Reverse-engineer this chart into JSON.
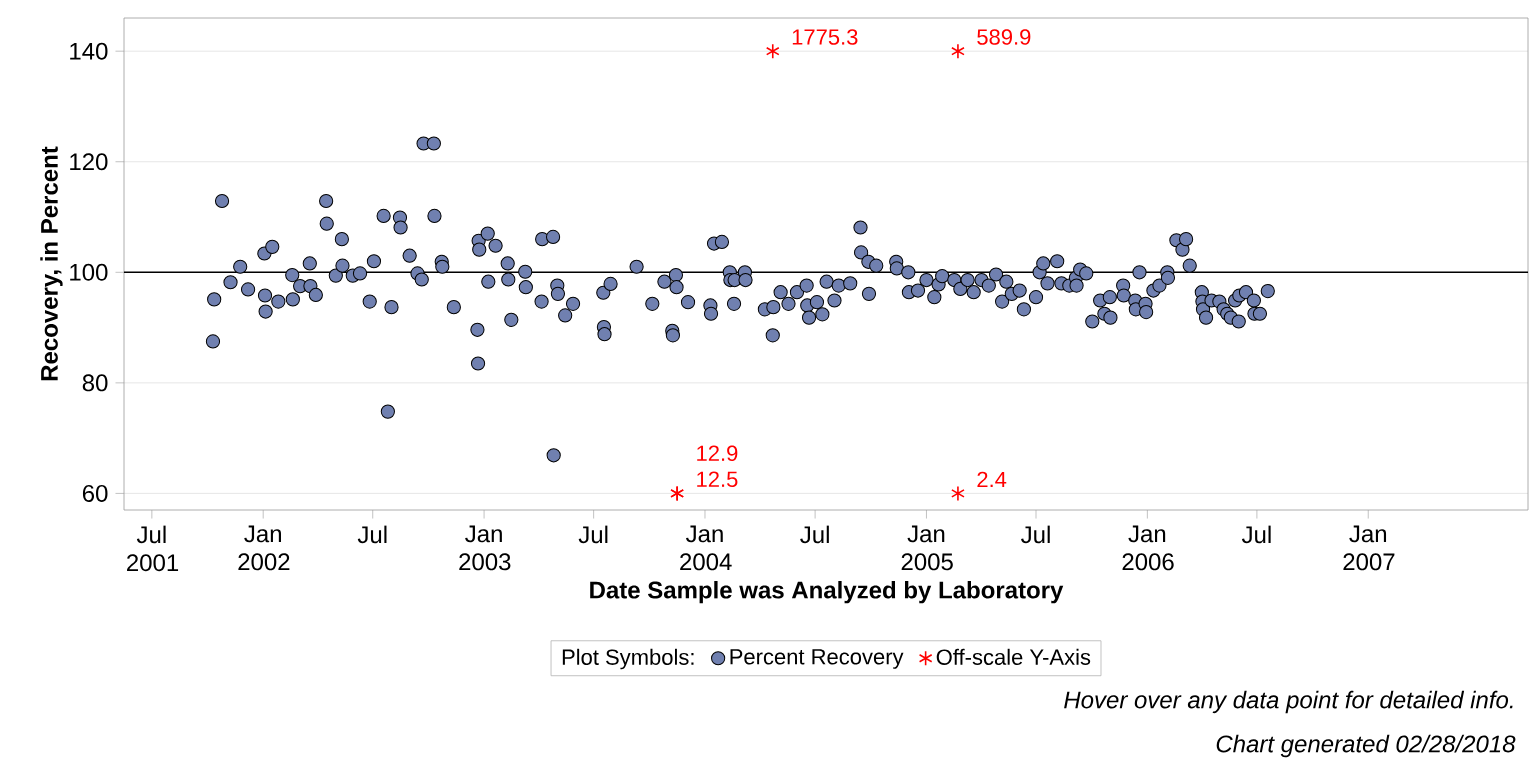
{
  "chart_data": {
    "type": "scatter",
    "xlabel": "Date Sample was Analyzed by Laboratory",
    "ylabel": "Recovery, in Percent",
    "legend_title": "Plot Symbols:",
    "legend": "bottom",
    "grid": "y",
    "xlim": [
      "2001-05-16",
      "2007-09-22"
    ],
    "xticks": [
      {
        "value": "2001-07-01",
        "label": "Jul 2001"
      },
      {
        "value": "2002-01-01",
        "label": "Jan 2002"
      },
      {
        "value": "2002-07-01",
        "label": "Jul"
      },
      {
        "value": "2003-01-01",
        "label": "Jan 2003"
      },
      {
        "value": "2003-07-01",
        "label": "Jul"
      },
      {
        "value": "2004-01-01",
        "label": "Jan 2004"
      },
      {
        "value": "2004-07-01",
        "label": "Jul"
      },
      {
        "value": "2005-01-01",
        "label": "Jan 2005"
      },
      {
        "value": "2005-07-01",
        "label": "Jul"
      },
      {
        "value": "2006-01-01",
        "label": "Jan 2006"
      },
      {
        "value": "2006-07-01",
        "label": "Jul"
      },
      {
        "value": "2007-01-01",
        "label": "Jan 2007"
      }
    ],
    "ylim": [
      57,
      146
    ],
    "yticks": [
      60,
      80,
      100,
      120,
      140
    ],
    "ref_lines": [
      {
        "axis": "y",
        "value": 100,
        "color": "#000000"
      }
    ],
    "annotations": [
      "Hover over any data point for detailed info.",
      "Chart generated 02/28/2018",
      {
        "text": "1775.3",
        "x": "2004-04-22",
        "y": 140
      },
      {
        "text": "589.9",
        "x": "2005-02-22",
        "y": 140
      },
      {
        "text": "12.5",
        "x": "2003-11-16",
        "y": 60
      },
      {
        "text": "12.9",
        "x": "2003-11-16",
        "y": 60
      },
      {
        "text": "2.4",
        "x": "2005-02-22",
        "y": 60
      }
    ],
    "series": [
      {
        "name": "Percent Recovery",
        "color": "#7080b0",
        "marker": "circle",
        "x": [
          "2001-10-10",
          "2001-10-12",
          "2001-10-25",
          "2001-11-08",
          "2001-11-24",
          "2001-12-07",
          "2002-01-03",
          "2002-01-04",
          "2002-01-05",
          "2002-01-16",
          "2002-01-26",
          "2002-02-18",
          "2002-02-19",
          "2002-03-03",
          "2002-03-19",
          "2002-03-20",
          "2002-03-29",
          "2002-04-15",
          "2002-04-16",
          "2002-05-01",
          "2002-05-11",
          "2002-05-12",
          "2002-05-29",
          "2002-06-10",
          "2002-06-26",
          "2002-07-03",
          "2002-07-19",
          "2002-07-26",
          "2002-08-01",
          "2002-08-15",
          "2002-08-16",
          "2002-08-31",
          "2002-09-13",
          "2002-09-20",
          "2002-09-23",
          "2002-10-10",
          "2002-10-11",
          "2002-10-23",
          "2002-10-24",
          "2002-11-12",
          "2002-12-21",
          "2002-12-22",
          "2002-12-23",
          "2002-12-24",
          "2003-01-07",
          "2003-01-08",
          "2003-01-20",
          "2003-02-09",
          "2003-02-10",
          "2003-02-15",
          "2003-03-10",
          "2003-03-11",
          "2003-04-06",
          "2003-04-07",
          "2003-04-25",
          "2003-04-26",
          "2003-05-02",
          "2003-05-03",
          "2003-05-15",
          "2003-05-28",
          "2003-07-17",
          "2003-07-18",
          "2003-07-19",
          "2003-07-29",
          "2003-09-10",
          "2003-10-06",
          "2003-10-26",
          "2003-11-08",
          "2003-11-09",
          "2003-11-14",
          "2003-11-15",
          "2003-12-04",
          "2004-01-10",
          "2004-01-11",
          "2004-01-16",
          "2004-01-29",
          "2004-02-11",
          "2004-02-12",
          "2004-02-18",
          "2004-02-19",
          "2004-03-07",
          "2004-03-08",
          "2004-04-09",
          "2004-04-22",
          "2004-04-23",
          "2004-05-05",
          "2004-05-18",
          "2004-06-01",
          "2004-06-17",
          "2004-06-18",
          "2004-06-21",
          "2004-07-04",
          "2004-07-13",
          "2004-07-20",
          "2004-08-02",
          "2004-08-09",
          "2004-08-28",
          "2004-09-14",
          "2004-09-15",
          "2004-09-27",
          "2004-09-28",
          "2004-10-10",
          "2004-11-12",
          "2004-11-13",
          "2004-12-02",
          "2004-12-03",
          "2004-12-18",
          "2005-01-01",
          "2005-01-14",
          "2005-01-21",
          "2005-01-27",
          "2005-02-16",
          "2005-02-26",
          "2005-03-10",
          "2005-03-20",
          "2005-04-02",
          "2005-04-14",
          "2005-04-26",
          "2005-05-06",
          "2005-05-13",
          "2005-05-22",
          "2005-06-04",
          "2005-06-11",
          "2005-07-01",
          "2005-07-07",
          "2005-07-13",
          "2005-07-20",
          "2005-08-05",
          "2005-08-12",
          "2005-08-25",
          "2005-09-05",
          "2005-09-06",
          "2005-09-12",
          "2005-09-22",
          "2005-10-02",
          "2005-10-15",
          "2005-10-22",
          "2005-10-31",
          "2005-11-01",
          "2005-11-22",
          "2005-11-23",
          "2005-12-12",
          "2005-12-13",
          "2005-12-19",
          "2005-12-29",
          "2005-12-30",
          "2006-01-11",
          "2006-01-21",
          "2006-02-03",
          "2006-02-04",
          "2006-02-18",
          "2006-02-28",
          "2006-03-06",
          "2006-03-12",
          "2006-04-01",
          "2006-04-02",
          "2006-04-03",
          "2006-04-08",
          "2006-04-17",
          "2006-04-30",
          "2006-05-07",
          "2006-05-13",
          "2006-05-19",
          "2006-05-26",
          "2006-06-01",
          "2006-06-02",
          "2006-06-13",
          "2006-06-26",
          "2006-06-27",
          "2006-07-06",
          "2006-07-19"
        ],
        "values": [
          87.5,
          95.1,
          112.9,
          98.2,
          101,
          96.9,
          103.4,
          95.8,
          92.9,
          104.6,
          94.7,
          99.5,
          95.1,
          97.5,
          101.6,
          97.5,
          95.9,
          112.9,
          108.8,
          99.4,
          106,
          101.2,
          99.4,
          99.8,
          94.7,
          102,
          110.2,
          74.8,
          93.7,
          109.9,
          108.1,
          103,
          99.8,
          98.7,
          123.3,
          123.3,
          110.2,
          101.9,
          101,
          93.7,
          89.6,
          83.5,
          105.7,
          104.1,
          107,
          98.3,
          104.8,
          101.6,
          98.7,
          91.4,
          100.1,
          97.3,
          94.7,
          106,
          106.4,
          66.9,
          97.6,
          96.1,
          92.2,
          94.3,
          96.3,
          90.1,
          88.8,
          97.9,
          101,
          94.3,
          98.3,
          89.4,
          88.6,
          99.5,
          97.3,
          94.6,
          94,
          92.5,
          105.2,
          105.5,
          100,
          98.6,
          94.3,
          98.6,
          100,
          98.6,
          93.3,
          88.6,
          93.7,
          96.4,
          94.3,
          96.4,
          97.6,
          94,
          91.8,
          94.6,
          92.4,
          98.3,
          94.9,
          97.6,
          98,
          108.1,
          103.6,
          101.9,
          96.1,
          101.2,
          101.9,
          100.7,
          100,
          96.4,
          96.7,
          98.6,
          95.5,
          97.8,
          99.3,
          98.6,
          97,
          98.6,
          96.4,
          98.6,
          97.6,
          99.6,
          94.7,
          98.3,
          96.1,
          96.7,
          93.3,
          95.5,
          100,
          101.6,
          98,
          102,
          98,
          97.6,
          99,
          97.6,
          100.5,
          99.8,
          91.1,
          94.9,
          92.5,
          95.5,
          91.8,
          97.6,
          95.8,
          94.9,
          93.3,
          100,
          94.3,
          92.8,
          96.7,
          97.6,
          100,
          99,
          105.8,
          104.1,
          106,
          101.2,
          96.4,
          94.7,
          93.3,
          91.8,
          94.9,
          94.7,
          93.3,
          92.5,
          91.8,
          94.9,
          91.1,
          95.8,
          96.4,
          94.9,
          92.5,
          92.5,
          96.6
        ]
      },
      {
        "name": "Off-scale Y-Axis",
        "color": "#ff0000",
        "marker": "cross",
        "x": [
          "2004-04-22",
          "2005-02-22",
          "2003-11-16",
          "2003-11-16",
          "2005-02-22"
        ],
        "values": [
          140,
          140,
          60,
          60,
          60
        ]
      }
    ]
  }
}
